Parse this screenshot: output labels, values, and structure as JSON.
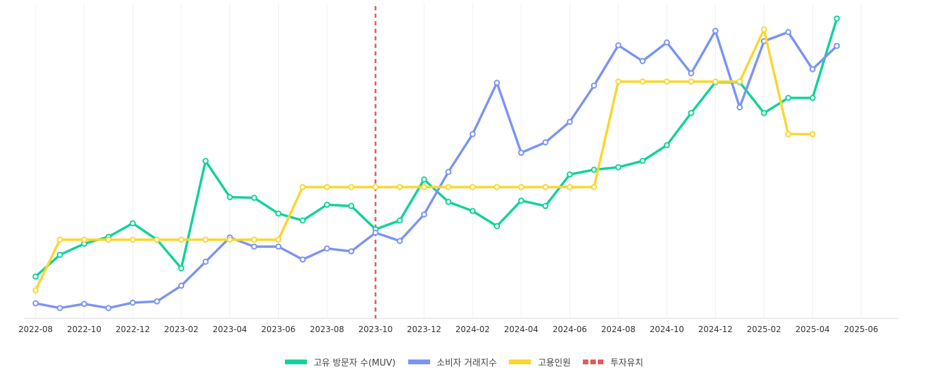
{
  "chart_data": {
    "type": "line",
    "title": "",
    "xlabel": "",
    "ylabel": "",
    "grid": {
      "vertical": true,
      "horizontal": false
    },
    "legend_position": "bottom",
    "x_tick_labels": [
      "2022-08",
      "2022-10",
      "2022-12",
      "2023-02",
      "2023-04",
      "2023-06",
      "2023-08",
      "2023-10",
      "2023-12",
      "2024-02",
      "2024-04",
      "2024-06",
      "2024-08",
      "2024-10",
      "2024-12",
      "2025-02",
      "2025-04",
      "2025-06"
    ],
    "x": [
      "2022-08",
      "2022-09",
      "2022-10",
      "2022-11",
      "2022-12",
      "2023-01",
      "2023-02",
      "2023-03",
      "2023-04",
      "2023-05",
      "2023-06",
      "2023-07",
      "2023-08",
      "2023-09",
      "2023-10",
      "2023-11",
      "2023-12",
      "2024-01",
      "2024-02",
      "2024-03",
      "2024-04",
      "2024-05",
      "2024-06",
      "2024-07",
      "2024-08",
      "2024-09",
      "2024-10",
      "2024-11",
      "2024-12",
      "2025-01",
      "2025-02",
      "2025-03",
      "2025-04",
      "2025-05"
    ],
    "ylim": [
      0,
      100
    ],
    "y_axis_visible": false,
    "series": [
      {
        "name": "고유 방문자 수(MUV)",
        "color": "#0fd39a",
        "style": "solid",
        "values": [
          13.3,
          20.2,
          23.7,
          25.9,
          30.2,
          25.0,
          15.9,
          50.0,
          38.5,
          38.3,
          33.3,
          31.1,
          36.1,
          35.7,
          28.3,
          31.1,
          44.1,
          37.0,
          34.1,
          29.3,
          37.4,
          35.7,
          45.7,
          47.2,
          48.0,
          50.0,
          55.0,
          65.2,
          75.0,
          75.0,
          65.2,
          70.0,
          70.0,
          95.2
        ]
      },
      {
        "name": "소비자 거래지수",
        "color": "#7b93f5",
        "style": "solid",
        "values": [
          4.8,
          3.3,
          4.6,
          3.3,
          5.0,
          5.4,
          10.4,
          18.0,
          25.7,
          22.8,
          22.8,
          18.7,
          22.2,
          21.3,
          27.2,
          24.6,
          33.0,
          46.5,
          58.5,
          74.8,
          52.6,
          55.9,
          62.4,
          73.9,
          86.7,
          81.7,
          87.6,
          77.8,
          91.3,
          67.0,
          88.0,
          90.9,
          79.1,
          86.5
        ]
      },
      {
        "name": "고용인원",
        "color": "#fdd52b",
        "style": "solid",
        "values": [
          8.9,
          25.0,
          25.0,
          25.0,
          25.0,
          25.0,
          25.0,
          25.0,
          25.0,
          25.0,
          25.0,
          41.7,
          41.7,
          41.7,
          41.7,
          41.7,
          41.7,
          41.7,
          41.7,
          41.7,
          41.7,
          41.7,
          41.7,
          41.7,
          75.2,
          75.2,
          75.2,
          75.2,
          75.2,
          75.2,
          91.7,
          58.5,
          58.5,
          null
        ]
      }
    ],
    "annotations": [
      {
        "type": "vertical_line",
        "name": "투자유치",
        "x": "2023-10",
        "color": "#e8585a",
        "style": "dashed"
      }
    ]
  },
  "legend": {
    "items": [
      {
        "label": "고유 방문자 수(MUV)",
        "color": "#0fd39a",
        "kind": "line"
      },
      {
        "label": "소비자 거래지수",
        "color": "#7b93f5",
        "kind": "line"
      },
      {
        "label": "고용인원",
        "color": "#fdd52b",
        "kind": "line"
      },
      {
        "label": "투자유치",
        "color": "#e8585a",
        "kind": "dashed"
      }
    ]
  }
}
